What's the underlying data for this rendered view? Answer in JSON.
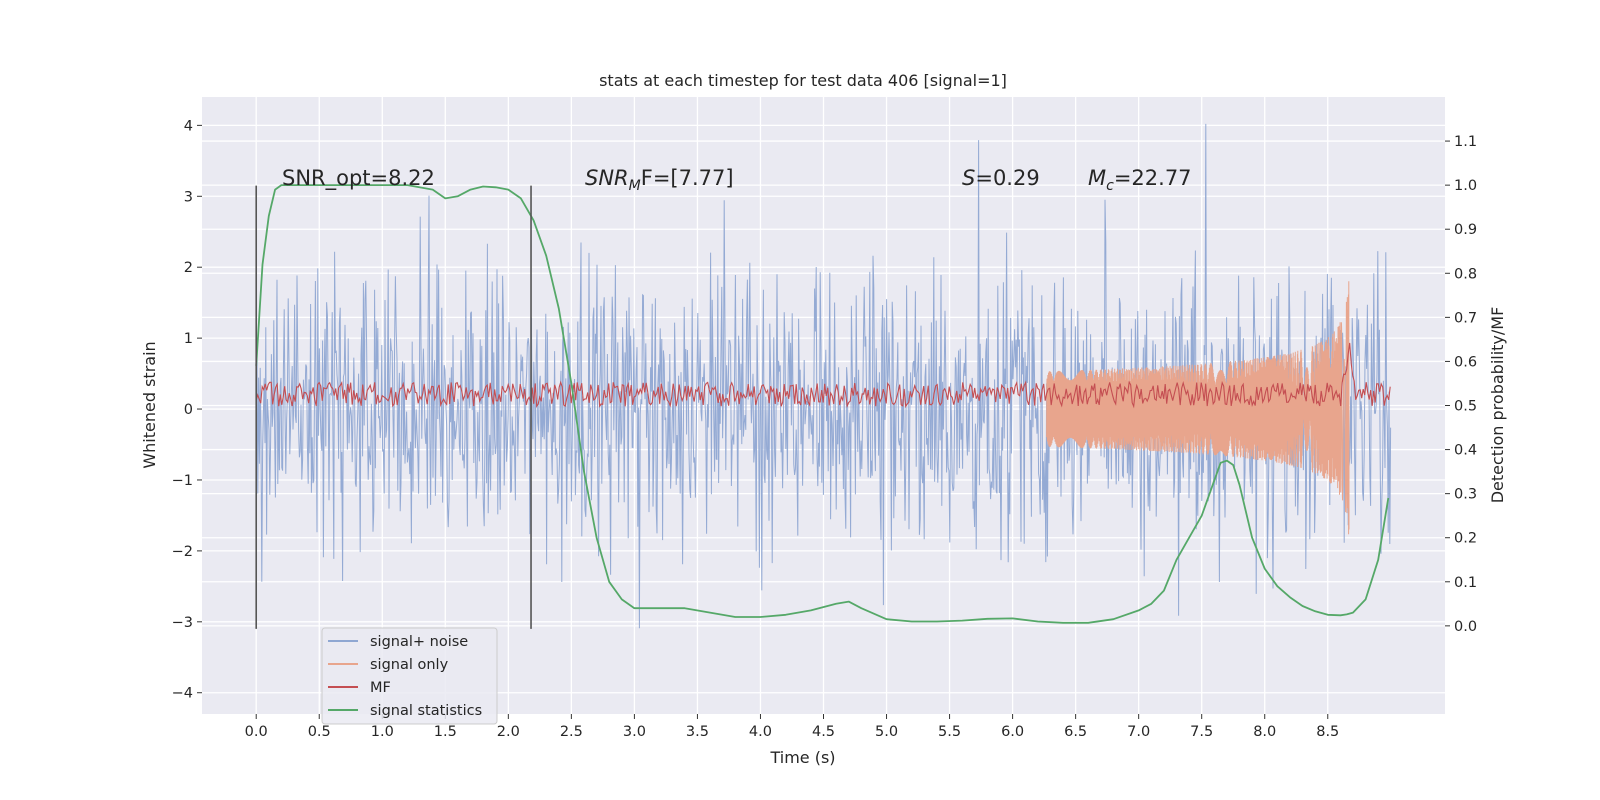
{
  "chart_data": {
    "type": "line",
    "title": "stats at each timestep for test data 406 [signal=1]",
    "xlabel": "Time (s)",
    "ylabel_left": "Whitened strain",
    "ylabel_right": "Detection probability/MF",
    "xlim": [
      -0.43,
      9.43
    ],
    "ylim_left": [
      -4.3,
      4.4
    ],
    "ylim_right": [
      -0.2,
      1.2
    ],
    "x_ticks": [
      "0.0",
      "0.5",
      "1.0",
      "1.5",
      "2.0",
      "2.5",
      "3.0",
      "3.5",
      "4.0",
      "4.5",
      "5.0",
      "5.5",
      "6.0",
      "6.5",
      "7.0",
      "7.5",
      "8.0",
      "8.5"
    ],
    "y_ticks_left": [
      "−4",
      "−3",
      "−2",
      "−1",
      "0",
      "1",
      "2",
      "3",
      "4"
    ],
    "y_ticks_right": [
      "0.0",
      "0.1",
      "0.2",
      "0.3",
      "0.4",
      "0.5",
      "0.6",
      "0.7",
      "0.8",
      "0.9",
      "1.0",
      "1.1"
    ],
    "grid": true,
    "legend_position": "lower-left",
    "annotations": {
      "snr_opt": "SNR_opt=8.22",
      "snr_mf_sym": "SNR",
      "snr_mf_sub": "M",
      "snr_mf_rest": "F=[7.77]",
      "s_sym": "S",
      "s_rest": "=0.29",
      "mc_sym": "M",
      "mc_sub": "c",
      "mc_rest": "=22.77"
    },
    "vertical_lines": {
      "x": [
        0.0,
        2.18
      ],
      "ymin": -3.1,
      "ymax": 3.15,
      "color": "#555555"
    },
    "series": [
      {
        "name": "signal+ noise",
        "color": "#8fa7d2",
        "axis": "left",
        "t_range": [
          0.0,
          9.0
        ],
        "std": 1.0,
        "peak_max": 4.02,
        "peak_min": -3.75
      },
      {
        "name": "signal only",
        "color": "#e8a58d",
        "axis": "left",
        "chirp_end": 8.67,
        "peak_amplitude": 1.9
      },
      {
        "name": "MF",
        "color": "#c44e52",
        "axis": "right",
        "baseline": 0.52,
        "spike_t": 8.67,
        "spike_value": 0.66
      },
      {
        "name": "signal statistics",
        "color": "#55a868",
        "axis": "right",
        "t": [
          0.0,
          0.05,
          0.1,
          0.15,
          0.2,
          0.4,
          0.6,
          0.8,
          1.0,
          1.2,
          1.4,
          1.5,
          1.6,
          1.7,
          1.8,
          1.9,
          2.0,
          2.1,
          2.2,
          2.3,
          2.4,
          2.5,
          2.55,
          2.6,
          2.7,
          2.8,
          2.9,
          3.0,
          3.2,
          3.4,
          3.6,
          3.8,
          4.0,
          4.2,
          4.4,
          4.6,
          4.7,
          4.8,
          5.0,
          5.2,
          5.4,
          5.6,
          5.8,
          6.0,
          6.2,
          6.4,
          6.6,
          6.8,
          7.0,
          7.1,
          7.2,
          7.3,
          7.4,
          7.5,
          7.6,
          7.65,
          7.7,
          7.75,
          7.8,
          7.9,
          8.0,
          8.1,
          8.2,
          8.3,
          8.4,
          8.5,
          8.6,
          8.65,
          8.7,
          8.8,
          8.9,
          8.98
        ],
        "values": [
          0.59,
          0.82,
          0.93,
          0.99,
          1.0,
          1.0,
          1.0,
          1.0,
          1.0,
          1.0,
          0.99,
          0.97,
          0.975,
          0.99,
          0.997,
          0.995,
          0.99,
          0.97,
          0.92,
          0.84,
          0.72,
          0.55,
          0.45,
          0.35,
          0.2,
          0.1,
          0.06,
          0.04,
          0.04,
          0.04,
          0.03,
          0.02,
          0.02,
          0.025,
          0.035,
          0.05,
          0.055,
          0.04,
          0.015,
          0.01,
          0.01,
          0.012,
          0.016,
          0.017,
          0.01,
          0.007,
          0.007,
          0.015,
          0.035,
          0.05,
          0.08,
          0.15,
          0.2,
          0.25,
          0.33,
          0.37,
          0.375,
          0.365,
          0.32,
          0.2,
          0.13,
          0.09,
          0.065,
          0.045,
          0.033,
          0.025,
          0.024,
          0.026,
          0.03,
          0.06,
          0.15,
          0.29
        ]
      }
    ]
  }
}
